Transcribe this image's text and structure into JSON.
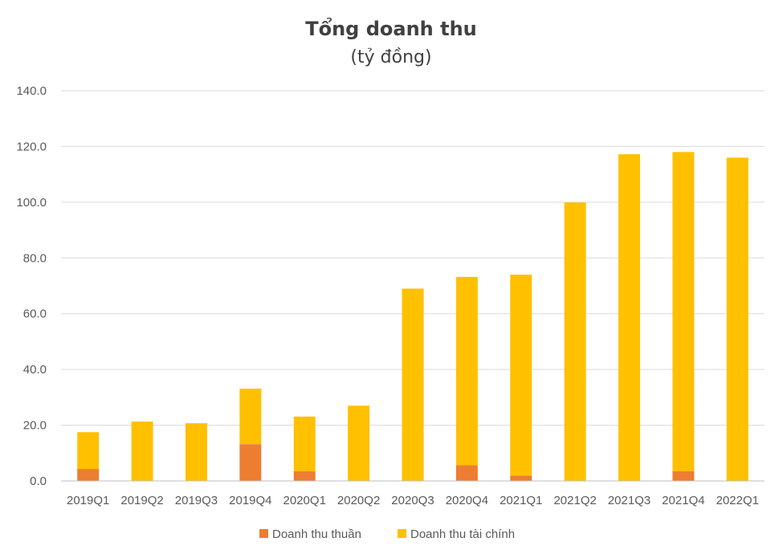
{
  "chart_data": {
    "type": "bar",
    "stacked": true,
    "title": "Tổng doanh thu",
    "subtitle": "(tỷ đồng)",
    "xlabel": "",
    "ylabel": "",
    "ylim": [
      0,
      140
    ],
    "yticks": [
      0,
      20,
      40,
      60,
      80,
      100,
      120,
      140
    ],
    "ytick_labels": [
      "0.0",
      "20.0",
      "40.0",
      "60.0",
      "80.0",
      "100.0",
      "120.0",
      "140.0"
    ],
    "grid": true,
    "legend_position": "bottom",
    "categories": [
      "2019Q1",
      "2019Q2",
      "2019Q3",
      "2019Q4",
      "2020Q1",
      "2020Q2",
      "2020Q3",
      "2020Q4",
      "2021Q1",
      "2021Q2",
      "2021Q3",
      "2021Q4",
      "2022Q1"
    ],
    "series": [
      {
        "name": "Doanh thu thuần",
        "color": "#ED7D31",
        "values": [
          4.3,
          0,
          0,
          13.2,
          3.5,
          0,
          0,
          5.6,
          1.9,
          0,
          0,
          3.5,
          0
        ]
      },
      {
        "name": "Doanh thu tài chính",
        "color": "#FFC000",
        "values": [
          13.2,
          21.3,
          20.7,
          19.9,
          19.6,
          27.0,
          69.0,
          67.6,
          72.1,
          99.9,
          117.2,
          114.5,
          116.0
        ]
      }
    ]
  }
}
